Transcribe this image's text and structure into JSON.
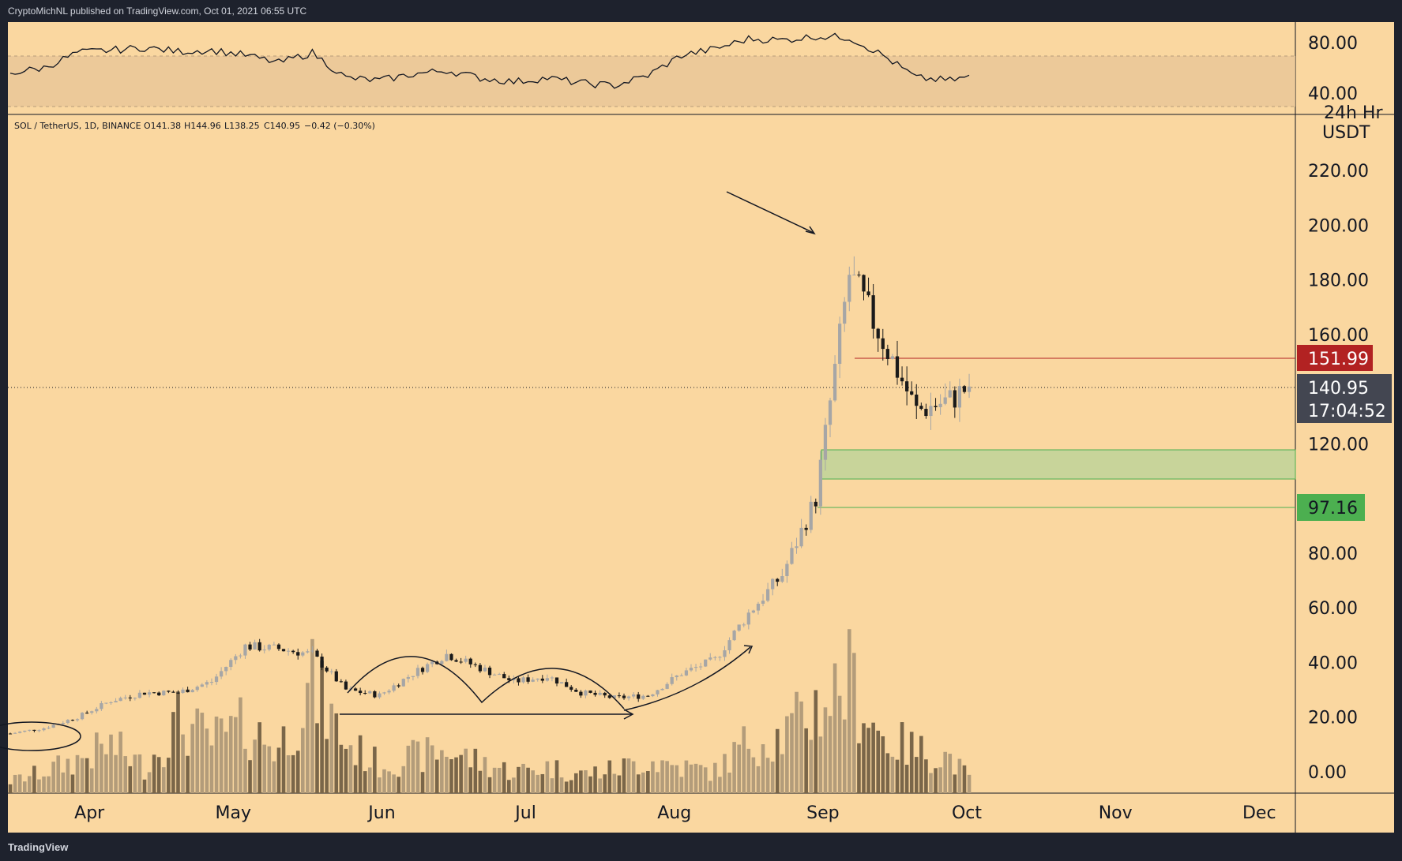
{
  "header": {
    "publisher": "CryptoMichNL published on TradingView.com, Oct 01, 2021 06:55 UTC"
  },
  "footer": {
    "brand": "TradingView"
  },
  "legend": {
    "symbol": "SOL / TetherUS, 1D, BINANCE",
    "open": "O141.38",
    "high": "H144.96",
    "low": "L138.25",
    "close": "C140.95",
    "change": "−0.42 (−0.30%)"
  },
  "axis": {
    "currency": "USDT",
    "clipped_label": "24h Hr",
    "price_ticks": [
      "220.00",
      "200.00",
      "180.00",
      "160.00",
      "120.00",
      "80.00",
      "60.00",
      "40.00",
      "20.00",
      "0.00"
    ],
    "rsi_ticks": [
      "80.00",
      "40.00"
    ],
    "months": [
      "Apr",
      "May",
      "Jun",
      "Jul",
      "Aug",
      "Sep",
      "Oct",
      "Nov",
      "Dec"
    ]
  },
  "badges": {
    "resistance": "151.99",
    "last_price": "140.95",
    "countdown": "17:04:52",
    "support": "97.16"
  },
  "colors": {
    "background": "#fad7a0",
    "candle_up": "#a6a6a6",
    "candle_down": "#1a1a1a",
    "volume_up": "#b39c7a",
    "volume_down": "#7a6649",
    "resistance_badge": "#b22222",
    "support_badge": "#4caf50",
    "last_price_badge": "#434651",
    "demand_zone": "#c8d49a"
  },
  "chart_data": {
    "type": "candlestick",
    "resistance_line": 151.99,
    "support_line": 97.16,
    "last_price": 140.95,
    "demand_zone": [
      108,
      119
    ],
    "rsi_band": [
      30,
      70
    ],
    "price_ylim": [
      0,
      220
    ],
    "rsi_ylim": [
      25,
      90
    ],
    "dates": [
      "2021-03-15",
      "2021-03-22",
      "2021-03-29",
      "2021-04-05",
      "2021-04-12",
      "2021-04-19",
      "2021-04-26",
      "2021-05-03",
      "2021-05-10",
      "2021-05-17",
      "2021-05-24",
      "2021-05-31",
      "2021-06-07",
      "2021-06-14",
      "2021-06-21",
      "2021-06-28",
      "2021-07-05",
      "2021-07-12",
      "2021-07-19",
      "2021-07-26",
      "2021-08-02",
      "2021-08-09",
      "2021-08-16",
      "2021-08-23",
      "2021-08-30",
      "2021-09-06",
      "2021-09-13",
      "2021-09-20",
      "2021-09-27",
      "2021-10-01"
    ],
    "close_path": [
      14,
      16,
      20,
      26,
      29,
      29,
      33,
      46,
      45,
      43,
      30,
      28,
      36,
      43,
      38,
      33,
      35,
      29,
      27,
      28,
      36,
      41,
      58,
      72,
      100,
      182,
      158,
      132,
      136,
      141
    ],
    "rsi_path": [
      56,
      60,
      72,
      74,
      76,
      73,
      74,
      70,
      64,
      72,
      52,
      50,
      55,
      58,
      52,
      49,
      52,
      48,
      46,
      54,
      70,
      75,
      83,
      82,
      85,
      84,
      70,
      52,
      50,
      53
    ],
    "volume_path": [
      5,
      9,
      14,
      20,
      11,
      30,
      22,
      28,
      19,
      45,
      21,
      12,
      15,
      18,
      13,
      9,
      11,
      8,
      10,
      14,
      11,
      9,
      22,
      24,
      36,
      48,
      23,
      18,
      15,
      6
    ]
  }
}
